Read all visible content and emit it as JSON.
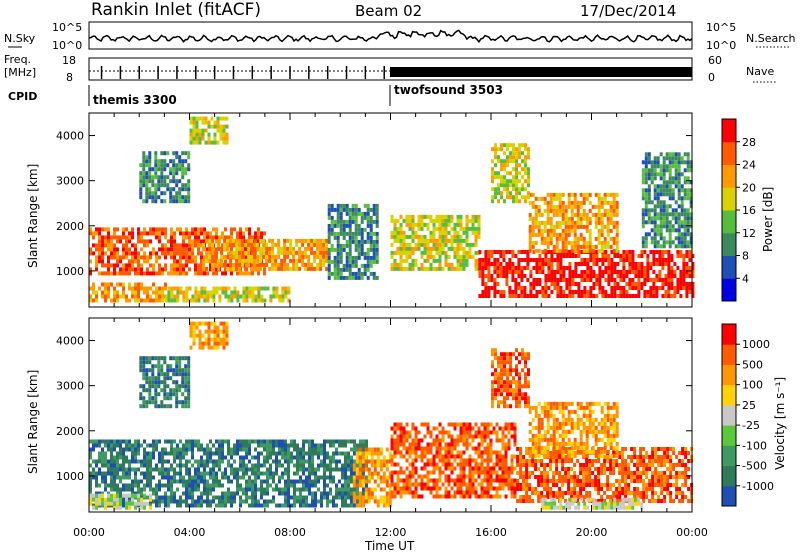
{
  "header": {
    "station": "Rankin Inlet (fitACF)",
    "beam": "Beam 02",
    "date": "17/Dec/2014"
  },
  "noise_panel": {
    "left_label": "N.Sky",
    "right_label": "N.Search",
    "left_ticks": [
      "10^5",
      "10^0"
    ],
    "right_ticks": [
      "10^5",
      "10^0"
    ]
  },
  "freq_panel": {
    "left_label_1": "Freq.",
    "left_label_2": "[MHz]",
    "right_label": "Nave",
    "left_ticks": [
      "18",
      "8"
    ],
    "right_ticks": [
      "60",
      "0"
    ]
  },
  "cpid": {
    "label": "CPID",
    "modes": [
      {
        "name": "themis 3300",
        "start_hour": 0
      },
      {
        "name": "twofsound 3503",
        "start_hour": 12
      }
    ]
  },
  "chart_data": [
    {
      "type": "heatmap",
      "name": "power",
      "ylabel": "Slant Range [km]",
      "yticks": [
        1000,
        2000,
        3000,
        4000
      ],
      "ylim": [
        200,
        4500
      ],
      "xlim": [
        0,
        24
      ],
      "colorbar": {
        "label": "Power [dB]",
        "ticks": [
          "28",
          "24",
          "20",
          "16",
          "12",
          "8",
          "4"
        ],
        "colors": [
          "#0000e6",
          "#1f4fb4",
          "#3c8a5c",
          "#56be3c",
          "#d8d200",
          "#ff9a00",
          "#ff5a00",
          "#ff0000"
        ]
      },
      "regions": [
        {
          "t0": 0.0,
          "t1": 7.0,
          "r0": 900,
          "r1": 1900,
          "level": 6
        },
        {
          "t0": 0.0,
          "t1": 3.0,
          "r0": 300,
          "r1": 700,
          "level": 5
        },
        {
          "t0": 3.0,
          "t1": 8.0,
          "r0": 300,
          "r1": 600,
          "level": 4
        },
        {
          "t0": 4.5,
          "t1": 9.5,
          "r0": 1000,
          "r1": 1700,
          "level": 5
        },
        {
          "t0": 9.5,
          "t1": 11.5,
          "r0": 800,
          "r1": 2400,
          "level": 2
        },
        {
          "t0": 12.0,
          "t1": 15.5,
          "r0": 1000,
          "r1": 2200,
          "level": 4
        },
        {
          "t0": 15.5,
          "t1": 24.0,
          "r0": 400,
          "r1": 1400,
          "level": 7
        },
        {
          "t0": 17.5,
          "t1": 21.0,
          "r0": 1400,
          "r1": 2700,
          "level": 5
        },
        {
          "t0": 4.0,
          "t1": 5.5,
          "r0": 3800,
          "r1": 4400,
          "level": 4
        },
        {
          "t0": 2.0,
          "t1": 4.0,
          "r0": 2500,
          "r1": 3600,
          "level": 2
        },
        {
          "t0": 16.0,
          "t1": 17.5,
          "r0": 2500,
          "r1": 3800,
          "level": 4
        },
        {
          "t0": 22.0,
          "t1": 24.0,
          "r0": 1500,
          "r1": 3600,
          "level": 2
        }
      ]
    },
    {
      "type": "heatmap",
      "name": "velocity",
      "ylabel": "Slant Range [km]",
      "xlabel": "Time UT",
      "xticks": [
        "00:00",
        "04:00",
        "08:00",
        "12:00",
        "16:00",
        "20:00",
        "00:00"
      ],
      "yticks": [
        1000,
        2000,
        3000,
        4000
      ],
      "ylim": [
        200,
        4500
      ],
      "xlim": [
        0,
        24
      ],
      "colorbar": {
        "label": "Velocity [m s⁻¹]",
        "ticks": [
          "1000",
          "500",
          "100",
          "25",
          "-25",
          "-100",
          "-500",
          "-1000"
        ],
        "colors": [
          "#1e50b4",
          "#2f7a5a",
          "#3e9a60",
          "#5ac83c",
          "#c8c8c8",
          "#ffd200",
          "#ff9600",
          "#ff5a00",
          "#ff0000"
        ]
      },
      "regions": [
        {
          "t0": 0.0,
          "t1": 11.0,
          "r0": 300,
          "r1": 1800,
          "level": 1
        },
        {
          "t0": 0.0,
          "t1": 2.5,
          "r0": 250,
          "r1": 600,
          "level": 4
        },
        {
          "t0": 10.5,
          "t1": 12.0,
          "r0": 300,
          "r1": 1600,
          "level": 6
        },
        {
          "t0": 12.0,
          "t1": 17.0,
          "r0": 500,
          "r1": 2100,
          "level": 7
        },
        {
          "t0": 17.0,
          "t1": 24.0,
          "r0": 400,
          "r1": 1600,
          "level": 7
        },
        {
          "t0": 17.5,
          "t1": 21.0,
          "r0": 1400,
          "r1": 2600,
          "level": 6
        },
        {
          "t0": 18.0,
          "t1": 22.0,
          "r0": 250,
          "r1": 500,
          "level": 4
        },
        {
          "t0": 4.0,
          "t1": 5.5,
          "r0": 3800,
          "r1": 4400,
          "level": 6
        },
        {
          "t0": 16.0,
          "t1": 17.5,
          "r0": 2500,
          "r1": 3800,
          "level": 7
        },
        {
          "t0": 2.0,
          "t1": 4.0,
          "r0": 2500,
          "r1": 3600,
          "level": 1
        }
      ]
    }
  ]
}
